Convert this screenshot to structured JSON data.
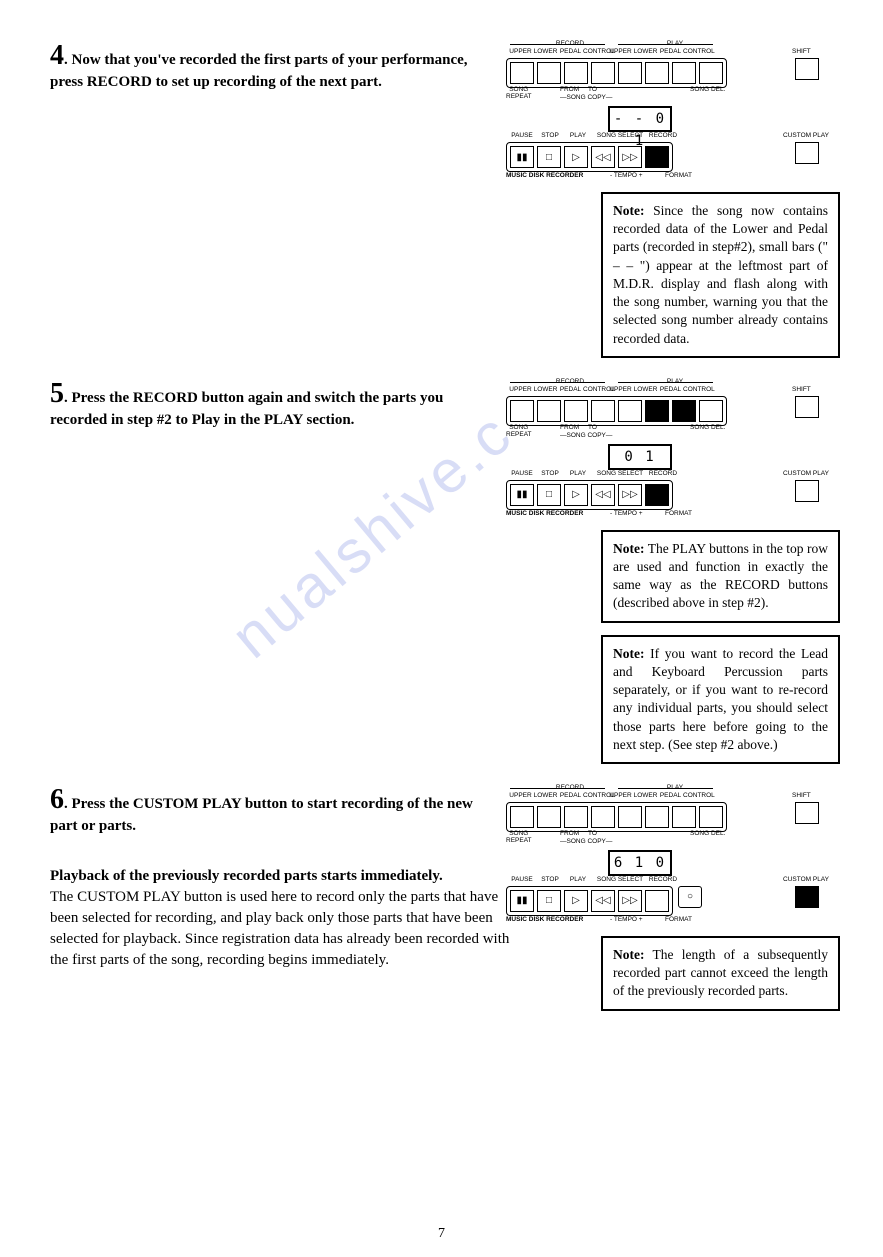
{
  "watermark": "nualshive.c",
  "steps": [
    {
      "num": "4",
      "text": ". Now that you've recorded the first parts of your performance, press RECORD to set up recording of the next part.",
      "display": "- - 0 1",
      "record_filled": true,
      "custom_filled": false,
      "extra_btn_filled": false,
      "notes": [
        {
          "bold": "Note:",
          "text": " Since the song now contains recorded data of the Lower and Pedal parts (recorded in step#2), small bars (\" – – \") appear at the leftmost part of M.D.R. display and flash along with the song number, warning you that the selected song number already contains recorded data."
        }
      ]
    },
    {
      "num": "5",
      "text": ". Press the RECORD button again and switch the parts you recorded in step #2 to Play in the PLAY section.",
      "display": "  0 1",
      "record_filled": true,
      "custom_filled": false,
      "extra_btn_filled": false,
      "play_row_filled": [
        false,
        true,
        true,
        false
      ],
      "notes": [
        {
          "bold": "Note:",
          "text": " The PLAY buttons in the top row are used and function in exactly the same way as the RECORD buttons (described above in step #2)."
        },
        {
          "bold": "Note:",
          "text": " If you want to record the Lead and Keyboard Percussion parts separately, or if you want to re-record any individual parts, you should select those parts here before going to the next step. (See step #2 above.)"
        }
      ]
    },
    {
      "num": "6",
      "text": ". Press the CUSTOM PLAY button to start recording of the new part or parts.",
      "display": "6 1 0",
      "record_filled": false,
      "custom_filled": true,
      "extra_btn_filled": false,
      "show_extra_btn": true,
      "notes": [
        {
          "bold": "Note:",
          "text": " The length of a subsequently recorded part cannot exceed the length of the previously recorded parts."
        }
      ]
    }
  ],
  "panel_labels": {
    "top_group_left": "RECORD",
    "top_group_right": "PLAY",
    "top": [
      "UPPER",
      "LOWER",
      "PEDAL",
      "CONTROL",
      "UPPER",
      "LOWER",
      "PEDAL",
      "CONTROL"
    ],
    "shift": "SHIFT",
    "song_repeat": "SONG\nREPEAT",
    "from": "FROM",
    "to": "TO",
    "song_copy": "SONG COPY",
    "song_del": "SONG DEL.",
    "transport": [
      "PAUSE",
      "STOP",
      "PLAY",
      "SONG SELECT",
      "",
      "RECORD"
    ],
    "custom_play": "CUSTOM PLAY",
    "mdr": "MUSIC DISK RECORDER",
    "tempo": "- TEMPO +",
    "format": "FORMAT"
  },
  "playback": {
    "title": "Playback of the previously recorded parts starts immediately.",
    "body": "The CUSTOM PLAY button is used here to record only the parts that have been selected for recording, and play back only those parts that have been selected for playback. Since registration data has already been recorded with the first parts of the song, recording begins immediately."
  },
  "page_number": "7"
}
